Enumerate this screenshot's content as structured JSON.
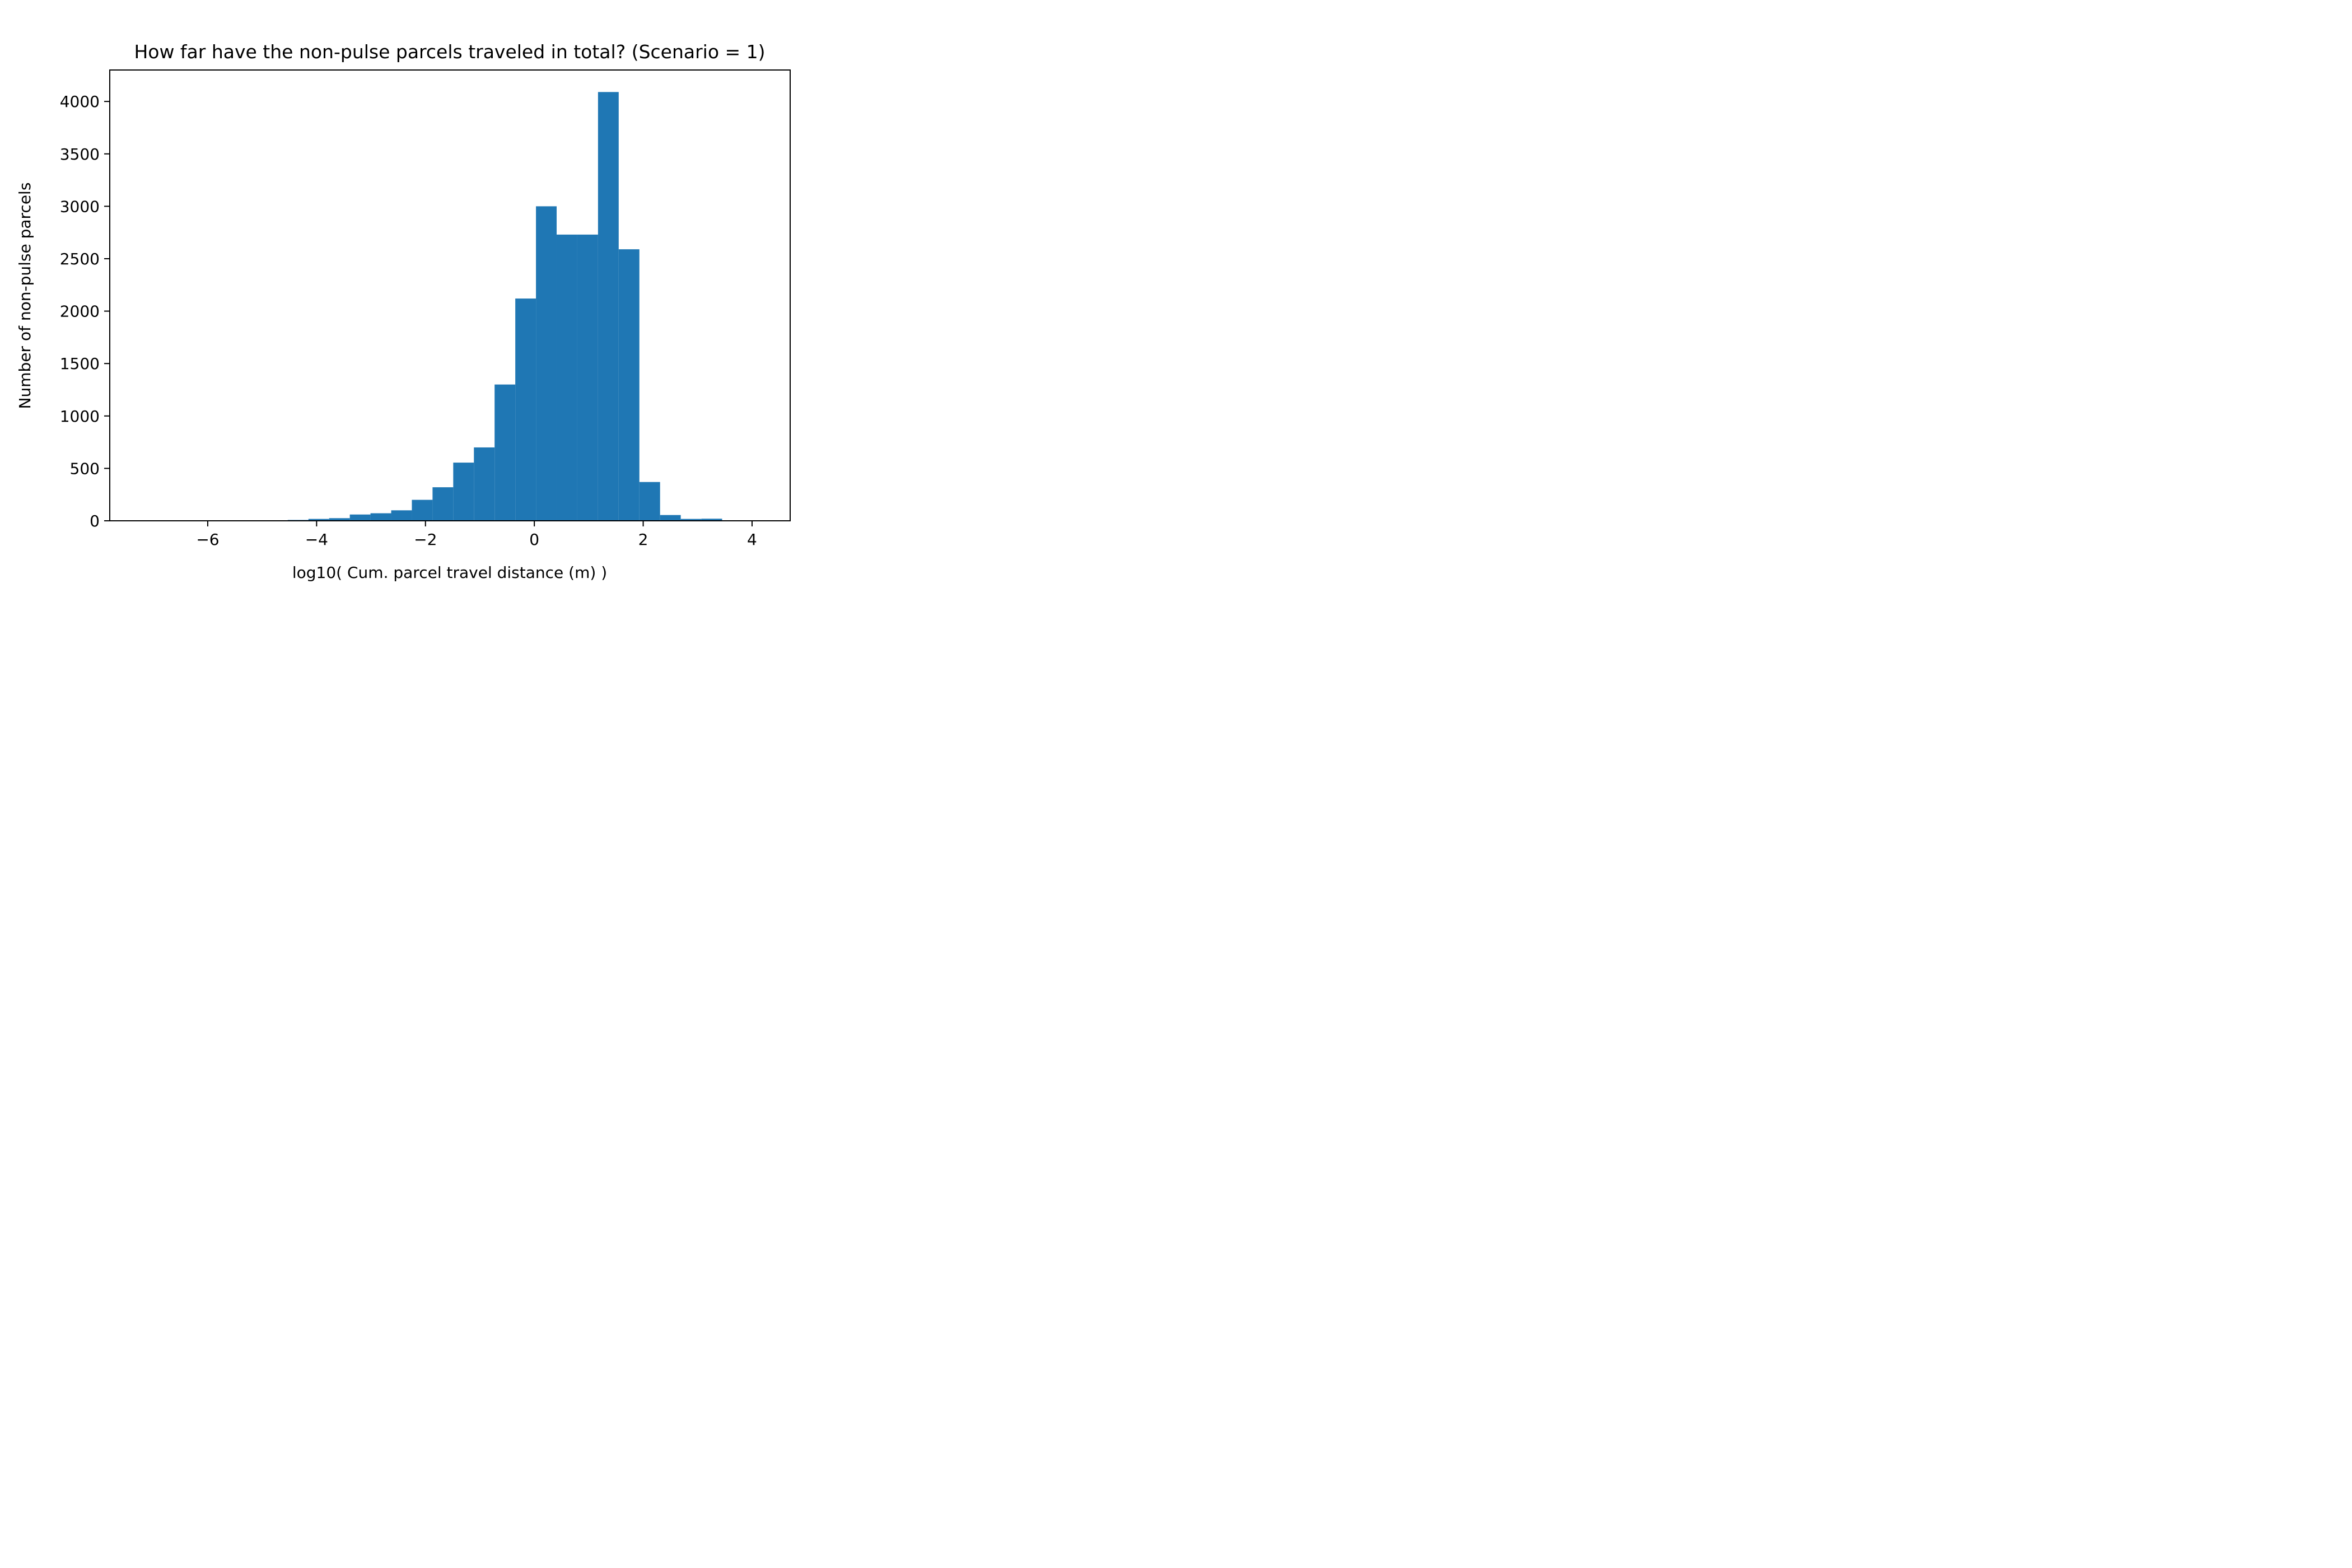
{
  "chart_data": {
    "type": "bar",
    "title": "How far have the non-pulse parcels traveled in total? (Scenario = 1)",
    "xlabel": "log10( Cum. parcel travel distance (m) )",
    "ylabel": "Number of non-pulse parcels",
    "xlim": [
      -7.8,
      4.7
    ],
    "ylim": [
      0,
      4300
    ],
    "xticks": [
      -6,
      -4,
      -2,
      0,
      2,
      4
    ],
    "xtick_labels": [
      "−6",
      "−4",
      "−2",
      "0",
      "2",
      "4"
    ],
    "yticks": [
      0,
      500,
      1000,
      1500,
      2000,
      2500,
      3000,
      3500,
      4000
    ],
    "ytick_labels": [
      "0",
      "500",
      "1000",
      "1500",
      "2000",
      "2500",
      "3000",
      "3500",
      "4000"
    ],
    "grid": false,
    "bar_color": "#1f77b4",
    "bins": [
      {
        "x0": -7.19,
        "x1": -6.81,
        "value": 0
      },
      {
        "x0": -6.81,
        "x1": -6.43,
        "value": 0
      },
      {
        "x0": -6.43,
        "x1": -6.05,
        "value": 0
      },
      {
        "x0": -6.05,
        "x1": -5.67,
        "value": 0
      },
      {
        "x0": -5.67,
        "x1": -5.29,
        "value": 0
      },
      {
        "x0": -5.29,
        "x1": -4.91,
        "value": 3
      },
      {
        "x0": -4.91,
        "x1": -4.53,
        "value": 5
      },
      {
        "x0": -4.53,
        "x1": -4.15,
        "value": 8
      },
      {
        "x0": -4.15,
        "x1": -3.77,
        "value": 18
      },
      {
        "x0": -3.77,
        "x1": -3.39,
        "value": 25
      },
      {
        "x0": -3.39,
        "x1": -3.01,
        "value": 60
      },
      {
        "x0": -3.01,
        "x1": -2.63,
        "value": 72
      },
      {
        "x0": -2.63,
        "x1": -2.25,
        "value": 100
      },
      {
        "x0": -2.25,
        "x1": -1.87,
        "value": 200
      },
      {
        "x0": -1.87,
        "x1": -1.49,
        "value": 320
      },
      {
        "x0": -1.49,
        "x1": -1.11,
        "value": 555
      },
      {
        "x0": -1.11,
        "x1": -0.73,
        "value": 700
      },
      {
        "x0": -0.73,
        "x1": -0.35,
        "value": 1300
      },
      {
        "x0": -0.35,
        "x1": 0.03,
        "value": 2120
      },
      {
        "x0": 0.03,
        "x1": 0.41,
        "value": 3000
      },
      {
        "x0": 0.41,
        "x1": 0.79,
        "value": 2730
      },
      {
        "x0": 0.79,
        "x1": 1.17,
        "value": 2730
      },
      {
        "x0": 1.17,
        "x1": 1.55,
        "value": 4090
      },
      {
        "x0": 1.55,
        "x1": 1.93,
        "value": 2590
      },
      {
        "x0": 1.93,
        "x1": 2.31,
        "value": 370
      },
      {
        "x0": 2.31,
        "x1": 2.69,
        "value": 55
      },
      {
        "x0": 2.69,
        "x1": 3.07,
        "value": 18
      },
      {
        "x0": 3.07,
        "x1": 3.45,
        "value": 20
      },
      {
        "x0": 3.45,
        "x1": 3.83,
        "value": 3
      },
      {
        "x0": 3.83,
        "x1": 4.21,
        "value": 2
      }
    ]
  }
}
